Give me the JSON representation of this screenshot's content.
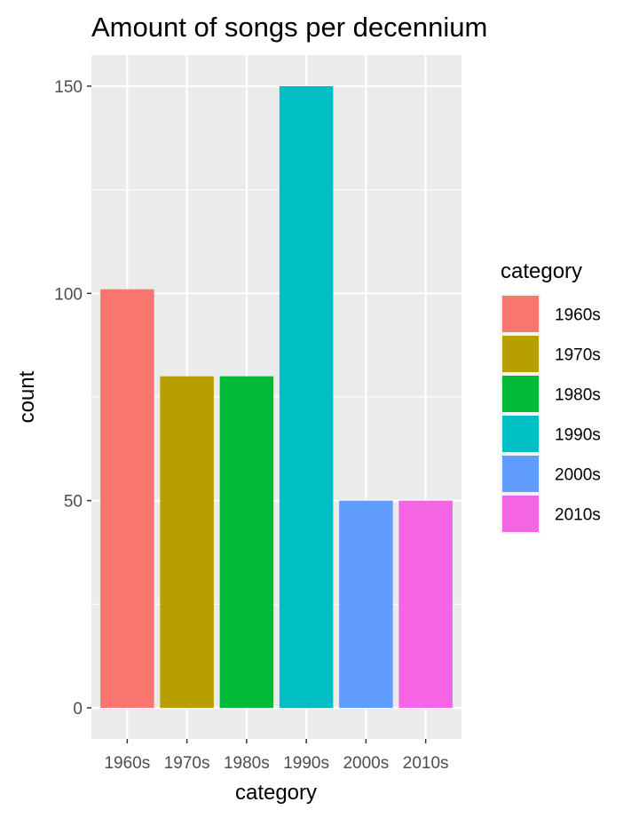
{
  "chart_data": {
    "type": "bar",
    "title": "Amount of songs per decennium",
    "xlabel": "category",
    "ylabel": "count",
    "categories": [
      "1960s",
      "1970s",
      "1980s",
      "1990s",
      "2000s",
      "2010s"
    ],
    "values": [
      101,
      80,
      80,
      150,
      50,
      50
    ],
    "colors": [
      "#F8766D",
      "#B79F00",
      "#00BA38",
      "#00BFC4",
      "#619CFF",
      "#F564E3"
    ],
    "ylim": [
      -7.5,
      157.5
    ],
    "yticks": [
      0,
      50,
      100,
      150
    ],
    "y_tick_labels": [
      "0",
      "50",
      "100",
      "150"
    ],
    "grid": true,
    "panel_background": "#EBEBEB",
    "grid_color": "#FFFFFF",
    "legend": {
      "title": "category",
      "placement": "right",
      "entries": [
        "1960s",
        "1970s",
        "1980s",
        "1990s",
        "2000s",
        "2010s"
      ]
    }
  }
}
